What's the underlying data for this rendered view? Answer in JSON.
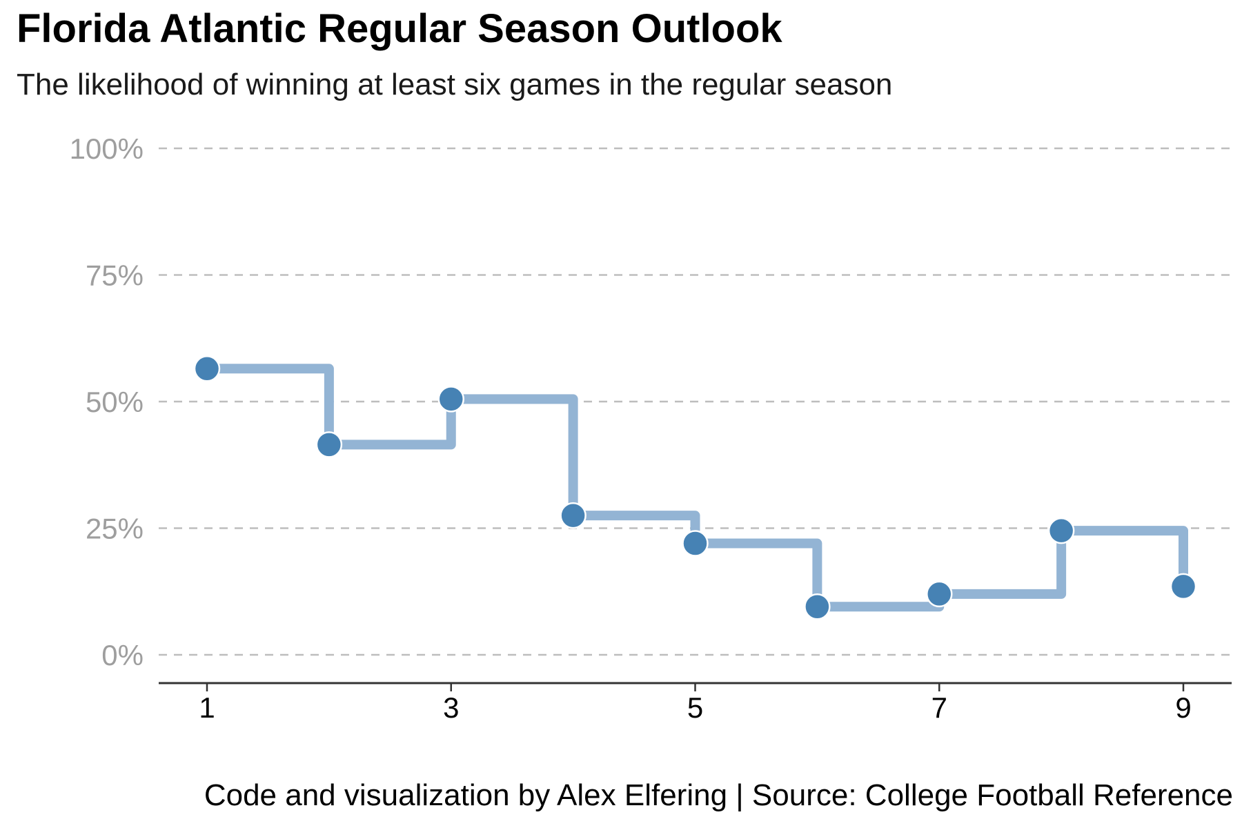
{
  "chart_data": {
    "type": "line",
    "step": true,
    "title": "Florida Atlantic Regular Season Outlook",
    "subtitle": "The likelihood of winning at least six games in the regular season",
    "caption": "Code and visualization by Alex Elfering | Source: College Football Reference",
    "xlabel": "",
    "ylabel": "",
    "x": [
      1,
      2,
      3,
      4,
      5,
      6,
      7,
      8,
      9
    ],
    "series": [
      {
        "values": [
          56.5,
          41.5,
          50.5,
          27.5,
          22.0,
          9.5,
          12.0,
          24.5,
          13.5
        ]
      }
    ],
    "xlim": [
      0.6,
      9.4
    ],
    "ylim": [
      -5,
      100
    ],
    "x_ticks": [
      1,
      3,
      5,
      7,
      9
    ],
    "x_tick_labels": [
      "1",
      "3",
      "5",
      "7",
      "9"
    ],
    "y_ticks": [
      0,
      25,
      50,
      75,
      100
    ],
    "y_tick_labels": [
      "0%",
      "25%",
      "50%",
      "75%",
      "100%"
    ],
    "grid": "horizontal dashed",
    "colors": {
      "point": "#4682b4",
      "line": "#93b4d4",
      "grid": "#bdbdbd",
      "axis": "#333333",
      "y_tick_text": "#9e9e9e"
    }
  }
}
